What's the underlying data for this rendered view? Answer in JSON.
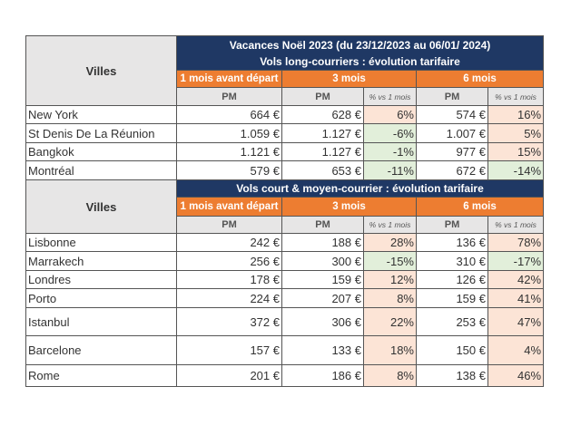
{
  "colors": {
    "navy": "#1f3864",
    "orange": "#ed7d31",
    "header_grey": "#e7e6e6",
    "increase": "#fce4d6",
    "decrease": "#e2efda"
  },
  "headers": {
    "villes": "Villes",
    "title": "Vacances Noël 2023 (du 23/12/2023  au 06/01/ 2024)",
    "long_title": "Vols long-courriers : évolution tarifaire",
    "short_title": "Vols court & moyen-courrier : évolution tarifaire",
    "col1": "1 mois avant départ",
    "col3": "3 mois",
    "col6": "6 mois",
    "pm": "PM",
    "pct": "% vs 1 mois"
  },
  "long_haul": [
    {
      "city": "New York",
      "pm1": "664 €",
      "pm3": "628 €",
      "pct3": "6%",
      "pm6": "574 €",
      "pct6": "16%"
    },
    {
      "city": "St Denis De La Réunion",
      "pm1": "1.059 €",
      "pm3": "1.127 €",
      "pct3": "-6%",
      "pm6": "1.007 €",
      "pct6": "5%"
    },
    {
      "city": "Bangkok",
      "pm1": "1.121 €",
      "pm3": "1.127 €",
      "pct3": "-1%",
      "pm6": "977 €",
      "pct6": "15%"
    },
    {
      "city": "Montréal",
      "pm1": "579 €",
      "pm3": "653 €",
      "pct3": "-11%",
      "pm6": "672 €",
      "pct6": "-14%"
    }
  ],
  "short_haul": [
    {
      "city": "Lisbonne",
      "pm1": "242 €",
      "pm3": "188 €",
      "pct3": "28%",
      "pm6": "136 €",
      "pct6": "78%"
    },
    {
      "city": "Marrakech",
      "pm1": "256 €",
      "pm3": "300 €",
      "pct3": "-15%",
      "pm6": "310 €",
      "pct6": "-17%"
    },
    {
      "city": "Londres",
      "pm1": "178 €",
      "pm3": "159 €",
      "pct3": "12%",
      "pm6": "126 €",
      "pct6": "42%"
    },
    {
      "city": "Porto",
      "pm1": "224 €",
      "pm3": "207 €",
      "pct3": "8%",
      "pm6": "159 €",
      "pct6": "41%"
    },
    {
      "city": "Istanbul",
      "pm1": "372 €",
      "pm3": "306 €",
      "pct3": "22%",
      "pm6": "253 €",
      "pct6": "47%"
    },
    {
      "city": "Barcelone",
      "pm1": "157 €",
      "pm3": "133 €",
      "pct3": "18%",
      "pm6": "150 €",
      "pct6": "4%"
    },
    {
      "city": "Rome",
      "pm1": "201 €",
      "pm3": "186 €",
      "pct3": "8%",
      "pm6": "138 €",
      "pct6": "46%"
    }
  ]
}
